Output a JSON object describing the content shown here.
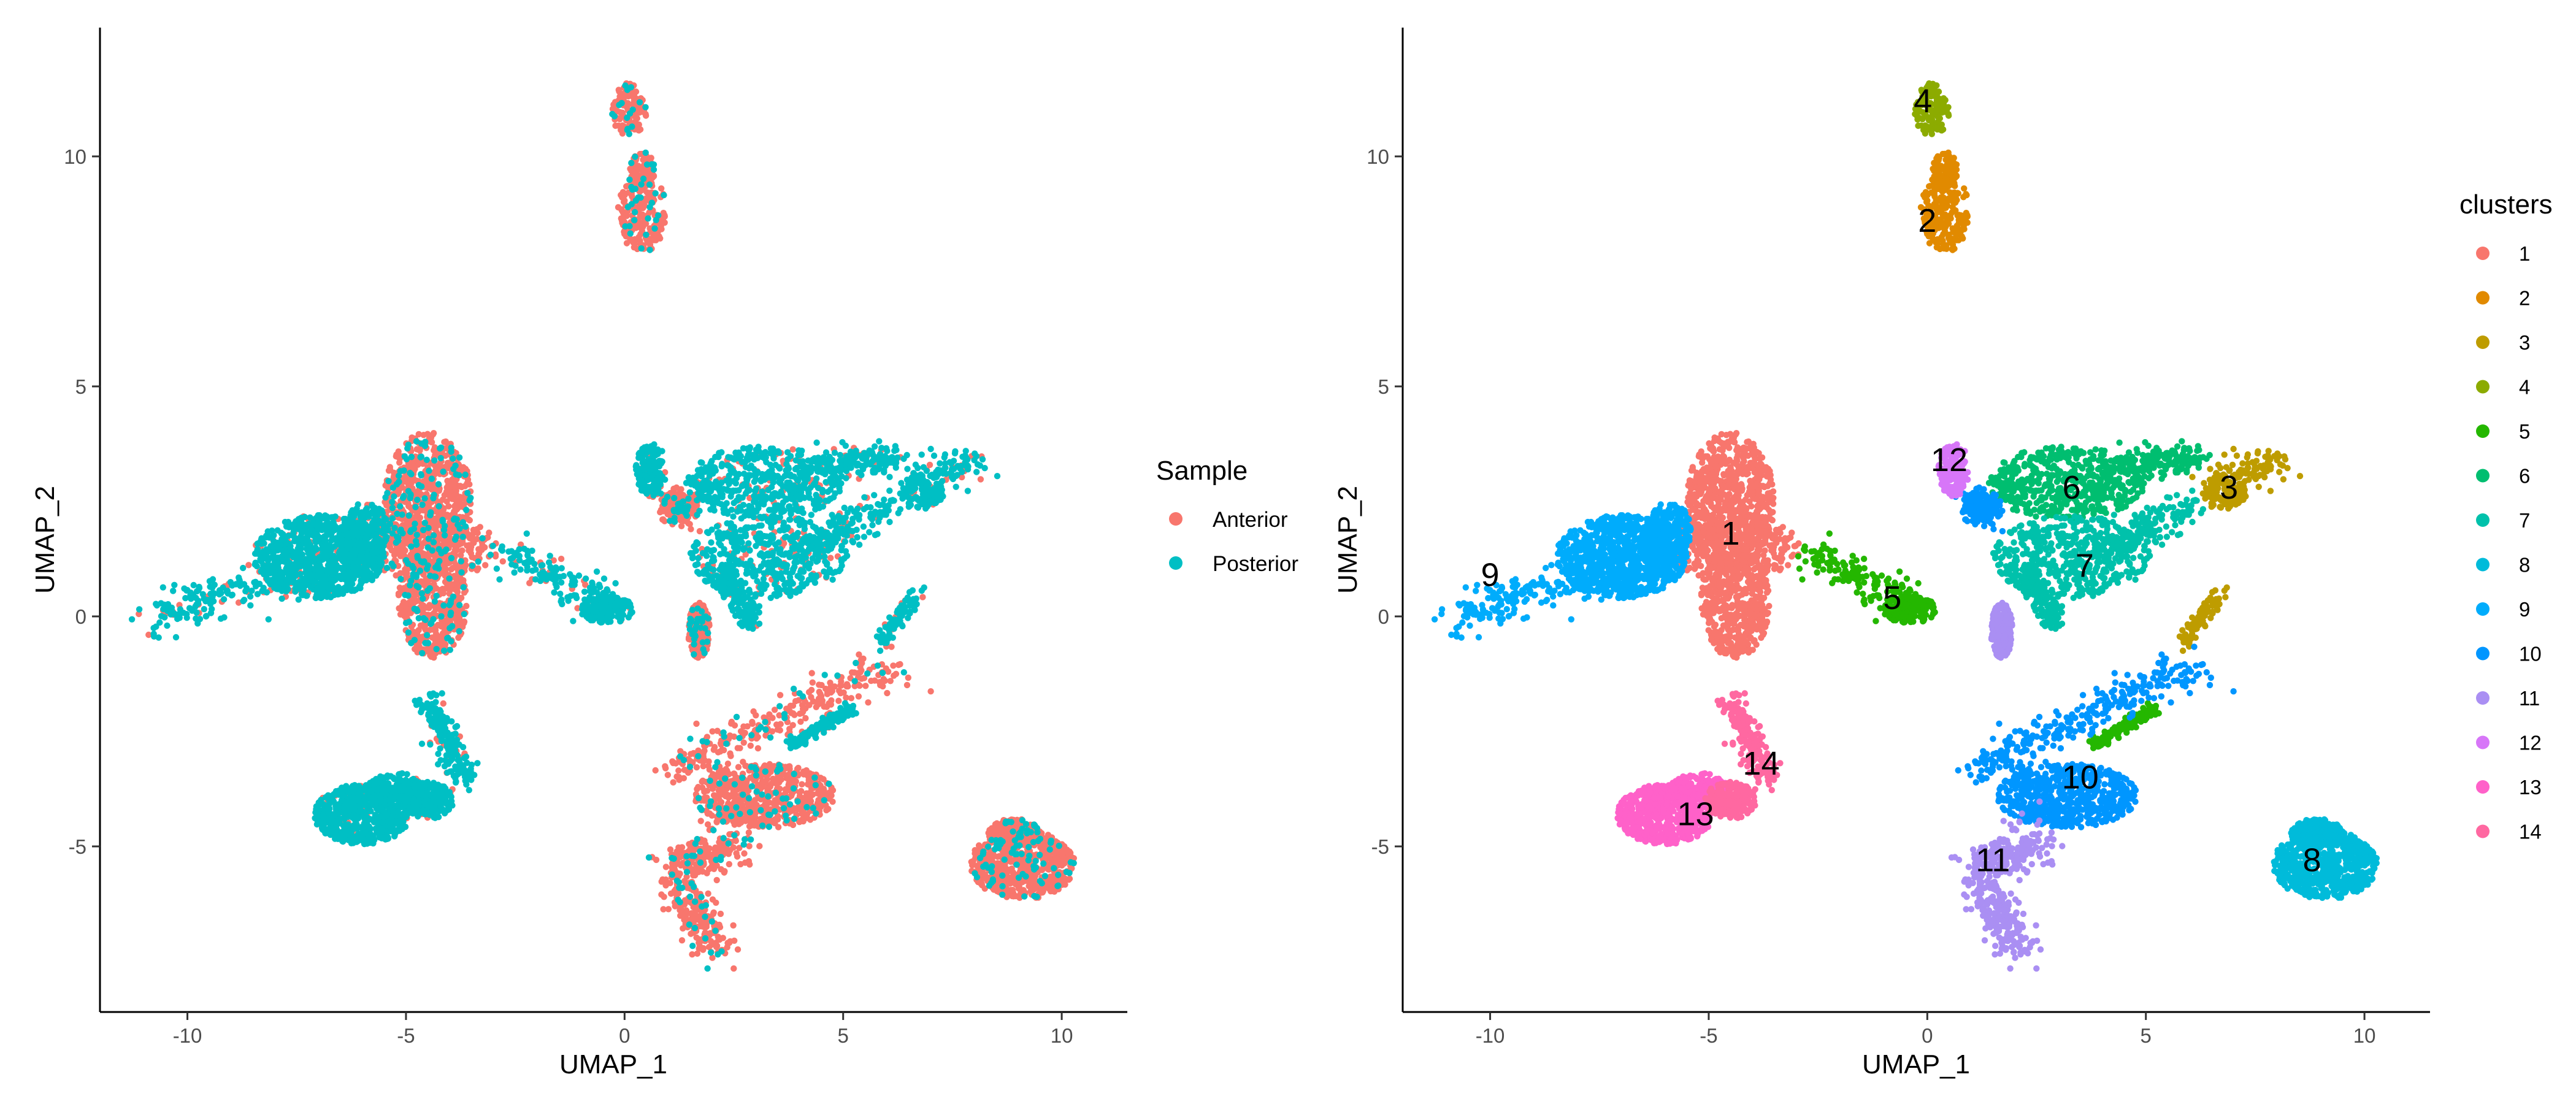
{
  "palette": {
    "1": "#F8766D",
    "2": "#E18A00",
    "3": "#BE9C00",
    "4": "#8CAB00",
    "5": "#24B700",
    "6": "#00BE70",
    "7": "#00C1AB",
    "8": "#00BBDA",
    "9": "#00ACFC",
    "10": "#0096FF",
    "11": "#AA8FF3",
    "12": "#D776F8",
    "13": "#FF61C9",
    "14": "#FF68A1",
    "Anterior": "#F8766D",
    "Posterior": "#00BFC4"
  },
  "chart_data": [
    {
      "type": "scatter",
      "title": "",
      "xlabel": "UMAP_1",
      "ylabel": "UMAP_2",
      "xlim": [
        -12,
        11.5
      ],
      "ylim": [
        -8.6,
        12.8
      ],
      "xticks": [
        -10,
        -5,
        0,
        5,
        10
      ],
      "yticks": [
        -5,
        0,
        5,
        10
      ],
      "grid": false,
      "color_by": "sample",
      "legend": {
        "title": "Sample",
        "position": "right",
        "entries": [
          "Anterior",
          "Posterior"
        ]
      },
      "series": [
        {
          "name": "Anterior",
          "color": "#F8766D"
        },
        {
          "name": "Posterior",
          "color": "#00BFC4"
        }
      ]
    },
    {
      "type": "scatter",
      "title": "",
      "xlabel": "UMAP_1",
      "ylabel": "UMAP_2",
      "xlim": [
        -12,
        11.5
      ],
      "ylim": [
        -8.6,
        12.8
      ],
      "xticks": [
        -10,
        -5,
        0,
        5,
        10
      ],
      "yticks": [
        -5,
        0,
        5,
        10
      ],
      "grid": false,
      "color_by": "cluster",
      "legend": {
        "title": "clusters",
        "position": "right",
        "entries": [
          "1",
          "2",
          "3",
          "4",
          "5",
          "6",
          "7",
          "8",
          "9",
          "10",
          "11",
          "12",
          "13",
          "14"
        ]
      },
      "cluster_labels": [
        {
          "label": "1",
          "x": -4.5,
          "y": 1.8
        },
        {
          "label": "2",
          "x": 0.0,
          "y": 8.6
        },
        {
          "label": "3",
          "x": 6.9,
          "y": 2.8
        },
        {
          "label": "4",
          "x": -0.1,
          "y": 11.2
        },
        {
          "label": "5",
          "x": -0.8,
          "y": 0.4
        },
        {
          "label": "6",
          "x": 3.3,
          "y": 2.8
        },
        {
          "label": "7",
          "x": 3.6,
          "y": 1.1
        },
        {
          "label": "8",
          "x": 8.8,
          "y": -5.3
        },
        {
          "label": "9",
          "x": -10.0,
          "y": 0.9
        },
        {
          "label": "10",
          "x": 3.5,
          "y": -3.5
        },
        {
          "label": "11",
          "x": 1.5,
          "y": -5.3
        },
        {
          "label": "12",
          "x": 0.5,
          "y": 3.4
        },
        {
          "label": "13",
          "x": -5.3,
          "y": -4.3
        },
        {
          "label": "14",
          "x": -3.8,
          "y": -3.2
        }
      ],
      "clusters": [
        {
          "id": "1",
          "sample": "Anterior",
          "n": 1500,
          "color": "#F8766D",
          "shapes": [
            {
              "k": "e",
              "cx": -4.5,
              "cy": 2.5,
              "rx": 1.0,
              "ry": 1.5,
              "w": 3
            },
            {
              "k": "e",
              "cx": -4.4,
              "cy": 0.3,
              "rx": 0.8,
              "ry": 1.2,
              "w": 2
            },
            {
              "k": "e",
              "cx": -4.5,
              "cy": 1.5,
              "rx": 1.6,
              "ry": 0.7,
              "w": 1.5
            }
          ]
        },
        {
          "id": "2",
          "sample": "Anterior",
          "n": 300,
          "color": "#E18A00",
          "shapes": [
            {
              "k": "e",
              "cx": 0.4,
              "cy": 8.8,
              "rx": 0.55,
              "ry": 0.9,
              "w": 3
            },
            {
              "k": "e",
              "cx": 0.4,
              "cy": 9.7,
              "rx": 0.3,
              "ry": 0.4,
              "w": 1
            }
          ]
        },
        {
          "id": "3",
          "sample": "Posterior",
          "n": 300,
          "color": "#BE9C00",
          "shapes": [
            {
              "k": "s",
              "x1": 6.3,
              "y1": 3.0,
              "x2": 8.3,
              "y2": 3.4,
              "r": 0.35
            },
            {
              "k": "e",
              "cx": 6.8,
              "cy": 2.7,
              "rx": 0.5,
              "ry": 0.4,
              "w": 1
            },
            {
              "k": "s",
              "x1": 5.8,
              "y1": -0.6,
              "x2": 6.7,
              "y2": 0.5,
              "r": 0.18
            }
          ]
        },
        {
          "id": "4",
          "sample": "Anterior",
          "n": 130,
          "color": "#8CAB00",
          "shapes": [
            {
              "k": "e",
              "cx": 0.1,
              "cy": 11.0,
              "rx": 0.4,
              "ry": 0.6,
              "w": 1
            }
          ]
        },
        {
          "id": "5",
          "sample": "Posterior",
          "n": 500,
          "color": "#24B700",
          "shapes": [
            {
              "k": "s",
              "x1": -2.8,
              "y1": 1.4,
              "x2": -0.1,
              "y2": 0.2,
              "r": 0.42
            },
            {
              "k": "e",
              "cx": -0.4,
              "cy": 0.15,
              "rx": 0.6,
              "ry": 0.3,
              "w": 1
            },
            {
              "k": "s",
              "x1": 3.8,
              "y1": -2.8,
              "x2": 5.2,
              "y2": -2.0,
              "r": 0.12
            }
          ]
        },
        {
          "id": "6",
          "sample": "Posterior",
          "n": 700,
          "color": "#00BE70",
          "shapes": [
            {
              "k": "e",
              "cx": 3.2,
              "cy": 2.9,
              "rx": 1.8,
              "ry": 0.8,
              "w": 3
            },
            {
              "k": "s",
              "x1": 4.5,
              "y1": 3.3,
              "x2": 6.3,
              "y2": 3.4,
              "r": 0.3
            }
          ]
        },
        {
          "id": "7",
          "sample": "Posterior",
          "n": 800,
          "color": "#00C1AB",
          "shapes": [
            {
              "k": "e",
              "cx": 3.3,
              "cy": 1.3,
              "rx": 1.8,
              "ry": 0.9,
              "w": 3
            },
            {
              "k": "s",
              "x1": 4.0,
              "y1": 1.4,
              "x2": 6.0,
              "y2": 2.4,
              "r": 0.4
            },
            {
              "k": "s",
              "x1": 2.3,
              "y1": 1.0,
              "x2": 2.9,
              "y2": -0.1,
              "r": 0.3
            }
          ]
        },
        {
          "id": "8",
          "sample": "Anterior",
          "n": 800,
          "color": "#00BBDA",
          "shapes": [
            {
              "k": "e",
              "cx": 9.1,
              "cy": -5.4,
              "rx": 1.2,
              "ry": 0.75,
              "w": 3
            },
            {
              "k": "e",
              "cx": 8.9,
              "cy": -4.7,
              "rx": 0.6,
              "ry": 0.3,
              "w": 1
            }
          ]
        },
        {
          "id": "9",
          "sample": "Posterior",
          "n": 1300,
          "color": "#00ACFC",
          "shapes": [
            {
              "k": "e",
              "cx": -7.0,
              "cy": 1.3,
              "rx": 1.5,
              "ry": 0.9,
              "w": 3
            },
            {
              "k": "s",
              "x1": -10.8,
              "y1": 0.0,
              "x2": -6.0,
              "y2": 1.4,
              "r": 0.5
            },
            {
              "k": "e",
              "cx": -5.9,
              "cy": 1.8,
              "rx": 0.5,
              "ry": 0.7,
              "w": 1
            }
          ]
        },
        {
          "id": "10",
          "sample": "Anterior",
          "n": 1200,
          "color": "#0096FF",
          "shapes": [
            {
              "k": "s",
              "x1": 1.0,
              "y1": -3.4,
              "x2": 6.2,
              "y2": -1.0,
              "r": 0.45
            },
            {
              "k": "e",
              "cx": 3.2,
              "cy": -3.9,
              "rx": 1.6,
              "ry": 0.7,
              "w": 2
            },
            {
              "k": "s",
              "x1": 1.0,
              "y1": 2.5,
              "x2": 1.4,
              "y2": 2.3,
              "r": 0.3
            }
          ]
        },
        {
          "id": "11",
          "sample": "Anterior",
          "n": 650,
          "color": "#AA8FF3",
          "shapes": [
            {
              "k": "s",
              "x1": 1.0,
              "y1": -5.5,
              "x2": 2.5,
              "y2": -5.0,
              "r": 0.5
            },
            {
              "k": "s",
              "x1": 1.3,
              "y1": -6.0,
              "x2": 2.1,
              "y2": -7.2,
              "r": 0.45
            },
            {
              "k": "e",
              "cx": 1.7,
              "cy": -0.3,
              "rx": 0.25,
              "ry": 0.6,
              "w": 1
            }
          ]
        },
        {
          "id": "12",
          "sample": "Posterior",
          "n": 170,
          "color": "#D776F8",
          "shapes": [
            {
              "k": "e",
              "cx": 0.6,
              "cy": 3.2,
              "rx": 0.35,
              "ry": 0.6,
              "w": 1
            }
          ]
        },
        {
          "id": "13",
          "sample": "Posterior",
          "n": 900,
          "color": "#FF61C9",
          "shapes": [
            {
              "k": "e",
              "cx": -6.0,
              "cy": -4.3,
              "rx": 1.1,
              "ry": 0.65,
              "w": 3
            },
            {
              "k": "e",
              "cx": -5.2,
              "cy": -3.8,
              "rx": 0.7,
              "ry": 0.4,
              "w": 1
            }
          ]
        },
        {
          "id": "14",
          "sample": "Posterior",
          "n": 400,
          "color": "#FF68A1",
          "shapes": [
            {
              "k": "s",
              "x1": -4.5,
              "y1": -1.8,
              "x2": -3.6,
              "y2": -3.6,
              "r": 0.3
            },
            {
              "k": "e",
              "cx": -4.5,
              "cy": -4.0,
              "rx": 0.6,
              "ry": 0.4,
              "w": 1
            }
          ]
        }
      ]
    }
  ]
}
